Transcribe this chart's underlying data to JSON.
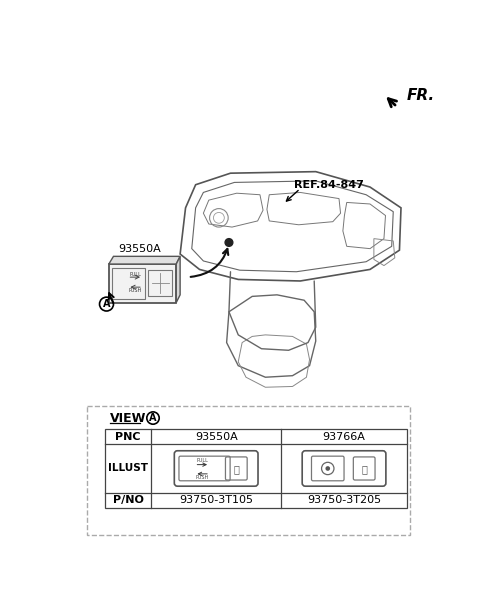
{
  "bg_color": "#ffffff",
  "fr_label": "FR.",
  "ref_label": "REF.84-847",
  "part_label": "93550A",
  "view_label": "VIEW",
  "circle_label": "A",
  "pnc_col1": "93550A",
  "pnc_col2": "93766A",
  "pno_col1": "93750-3T105",
  "pno_col2": "93750-3T205",
  "row_labels": [
    "PNC",
    "ILLUST",
    "P/NO"
  ],
  "switch1_text1": "PULL",
  "switch1_text2": "PUSH"
}
